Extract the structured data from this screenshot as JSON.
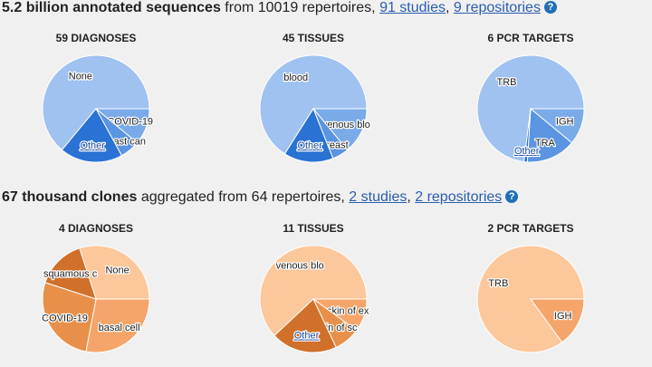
{
  "sequences": {
    "count_label": "5.2 billion annotated sequences",
    "from_text": "from 10019 repertoires,",
    "studies_link": "91 studies",
    "repositories_link": "9 repositories",
    "help_icon": "question-circle-icon"
  },
  "clones": {
    "count_label": "67 thousand clones",
    "from_text": "aggregated from 64 repertoires,",
    "studies_link": "2 studies",
    "repositories_link": "2 repositories",
    "help_icon": "question-circle-icon"
  },
  "colors": {
    "sequences_palette": [
      "#a0c2f0",
      "#7aaae8",
      "#5b94e0",
      "#2a72d4"
    ],
    "clones_palette": [
      "#fcc79a",
      "#f5a569",
      "#e8904a",
      "#d0702a"
    ]
  },
  "chart_data": [
    {
      "type": "pie",
      "title": "59 DIAGNOSES",
      "section": "sequences",
      "slices": [
        {
          "label": "None",
          "value": 64
        },
        {
          "label": "COVID-19",
          "value": 11
        },
        {
          "label": "breast can",
          "value": 6
        },
        {
          "label": "Other",
          "value": 19,
          "link": true
        }
      ]
    },
    {
      "type": "pie",
      "title": "45 TISSUES",
      "section": "sequences",
      "slices": [
        {
          "label": "blood",
          "value": 66
        },
        {
          "label": "venous blo",
          "value": 14
        },
        {
          "label": "breast",
          "value": 5
        },
        {
          "label": "Other",
          "value": 15,
          "link": true
        }
      ]
    },
    {
      "type": "pie",
      "title": "6 PCR TARGETS",
      "section": "sequences",
      "slices": [
        {
          "label": "TRB",
          "value": 73
        },
        {
          "label": "IGH",
          "value": 11
        },
        {
          "label": "TRA",
          "value": 15
        },
        {
          "label": "Other",
          "value": 1,
          "link": true
        }
      ]
    },
    {
      "type": "pie",
      "title": "4 DIAGNOSES",
      "section": "clones",
      "slices": [
        {
          "label": "None",
          "value": 30
        },
        {
          "label": "basal cell",
          "value": 28
        },
        {
          "label": "COVID-19",
          "value": 27
        },
        {
          "label": "squamous c",
          "value": 15
        }
      ]
    },
    {
      "type": "pie",
      "title": "11 TISSUES",
      "section": "clones",
      "slices": [
        {
          "label": "venous blo",
          "value": 62
        },
        {
          "label": "skin of ex",
          "value": 10
        },
        {
          "label": "skin of sc",
          "value": 8
        },
        {
          "label": "Other",
          "value": 20,
          "link": true
        }
      ]
    },
    {
      "type": "pie",
      "title": "2 PCR TARGETS",
      "section": "clones",
      "slices": [
        {
          "label": "TRB",
          "value": 85
        },
        {
          "label": "IGH",
          "value": 15
        }
      ]
    }
  ]
}
